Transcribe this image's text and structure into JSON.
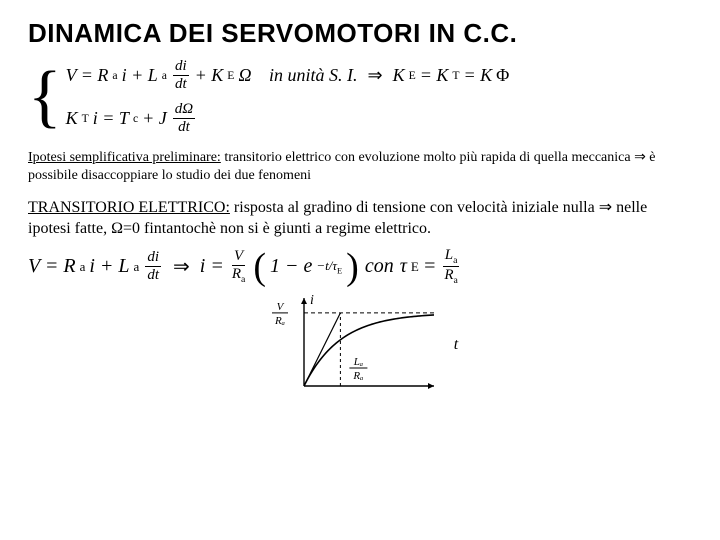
{
  "title": "DINAMICA DEI SERVOMOTORI IN C.C.",
  "eq_units": "in unità S. I.",
  "eq_k": "K",
  "eq_ke": "E",
  "eq_kt": "T",
  "eq_kphi": "Φ",
  "para1_lead": "Ipotesi semplificativa preliminare:",
  "para1_rest": " transitorio elettrico con evoluzione molto più rapida di quella meccanica ⇒ è possibile disaccoppiare lo studio dei due fenomeni",
  "para2_lead": "TRANSITORIO ELETTRICO:",
  "para2_rest": " risposta al gradino di tensione con velocità iniziale nulla ⇒ nelle ipotesi fatte, Ω=0 fintantochè non si è giunti a regime elettrico.",
  "con": "con",
  "chart": {
    "type": "line",
    "width": 180,
    "height": 110,
    "background": "#ffffff",
    "axis_color": "#000000",
    "curve_color": "#000000",
    "asymptote_y": 0.85,
    "tangent_slope": 1.0,
    "labels": {
      "y_axis_top": "i",
      "asymptote_num": "V",
      "asymptote_den": "Rₐ",
      "x_tick_num": "Lₐ",
      "x_tick_den": "Rₐ",
      "x_axis_right": "t"
    },
    "fontsize_small": 11,
    "fontsize_axis": 14
  }
}
